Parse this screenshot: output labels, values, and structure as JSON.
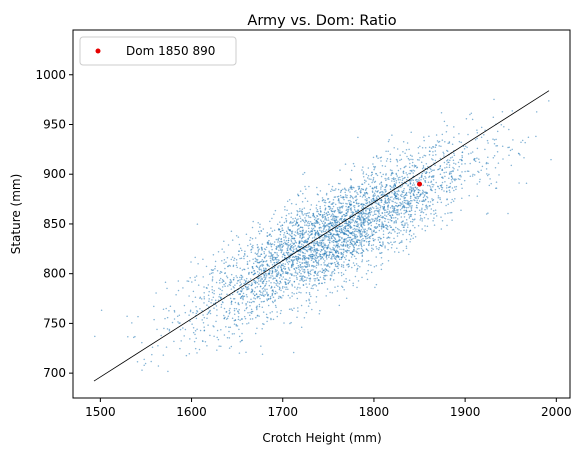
{
  "chart_data": {
    "type": "scatter",
    "title": "Army vs. Dom: Ratio",
    "xlabel": "Crotch Height (mm)",
    "ylabel": "Stature (mm)",
    "xlim": [
      1470,
      2015
    ],
    "ylim": [
      675,
      1045
    ],
    "xticks": [
      1500,
      1600,
      1700,
      1800,
      1900,
      2000
    ],
    "yticks": [
      700,
      750,
      800,
      850,
      900,
      950,
      1000
    ],
    "grid": false,
    "legend_position": "top-left",
    "colors": {
      "cloud": "#1f77b4",
      "highlight": "#e60000",
      "line": "#000000"
    },
    "cloud": {
      "description": "approx. 4000 measurements, bivariate cluster",
      "x_mean": 1755,
      "x_sd": 75,
      "y_mean": 838,
      "y_sd": 44,
      "correlation": 0.84,
      "x_range": [
        1490,
        1995
      ],
      "y_range": [
        695,
        1030
      ],
      "count": 4000
    },
    "series": [
      {
        "name": "Dom 1850 890",
        "x": [
          1850
        ],
        "y": [
          890
        ]
      }
    ],
    "fit_line": {
      "x": [
        1493,
        1992
      ],
      "y": [
        692,
        984
      ]
    }
  }
}
